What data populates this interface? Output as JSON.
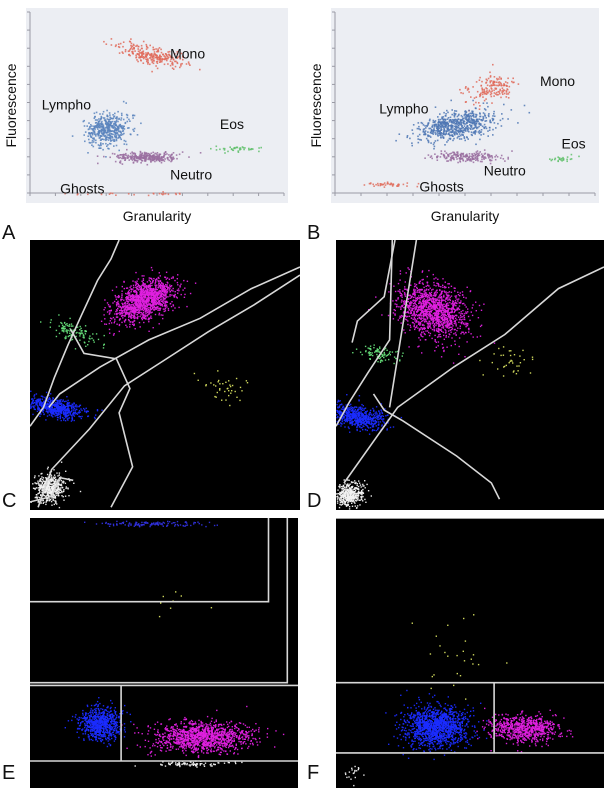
{
  "figure": {
    "panel_letters": [
      "A",
      "B",
      "C",
      "D",
      "E",
      "F"
    ]
  },
  "chart_data": [
    {
      "panel": "A",
      "type": "scatter",
      "title": "",
      "xlabel": "Granularity",
      "ylabel": "Fluorescence",
      "grid": false,
      "legend": "none",
      "background": "#eceef3",
      "populations": [
        {
          "name": "Mono",
          "color": "#e06a5a",
          "label": "Mono",
          "shape": "cloud",
          "center": [
            4.8,
            7.6
          ],
          "spread": [
            0.45,
            1.3
          ],
          "tilt": -72,
          "count": 260
        },
        {
          "name": "Lympho",
          "color": "#5b84bd",
          "label": "Lympho",
          "shape": "cloud",
          "center": [
            3.1,
            3.8
          ],
          "spread": [
            0.9,
            0.8
          ],
          "tilt": -35,
          "count": 450
        },
        {
          "name": "Neutro",
          "color": "#9a6fa0",
          "label": "Neutro",
          "shape": "cloud",
          "center": [
            4.6,
            2.4
          ],
          "spread": [
            1.2,
            0.25
          ],
          "tilt": 0,
          "count": 300
        },
        {
          "name": "Eos",
          "color": "#5fbf6a",
          "label": "Eos",
          "shape": "cloud",
          "center": [
            8.1,
            2.8
          ],
          "spread": [
            0.9,
            0.15
          ],
          "tilt": 0,
          "count": 40
        },
        {
          "name": "Ghosts",
          "color": "#e07060",
          "label": "Ghosts",
          "shape": "cloud",
          "center": [
            4.0,
            0.5
          ],
          "spread": [
            3.0,
            0.08
          ],
          "tilt": 0,
          "count": 25
        }
      ]
    },
    {
      "panel": "B",
      "type": "scatter",
      "title": "",
      "xlabel": "Granularity",
      "ylabel": "Fluorescence",
      "grid": false,
      "legend": "none",
      "background": "#eceef3",
      "populations": [
        {
          "name": "Mono",
          "color": "#e06a5a",
          "label": "Mono",
          "shape": "cloud",
          "center": [
            6.0,
            5.9
          ],
          "spread": [
            1.0,
            0.6
          ],
          "tilt": -30,
          "count": 160
        },
        {
          "name": "Lympho",
          "color": "#4f77b4",
          "label": "Lympho",
          "shape": "cloud",
          "center": [
            4.6,
            4.0
          ],
          "spread": [
            1.5,
            0.7
          ],
          "tilt": -18,
          "count": 650
        },
        {
          "name": "Neutro",
          "color": "#9a6fa0",
          "label": "Neutro",
          "shape": "cloud",
          "center": [
            5.1,
            2.4
          ],
          "spread": [
            1.3,
            0.25
          ],
          "tilt": 0,
          "count": 200
        },
        {
          "name": "Eos",
          "color": "#5fbf6a",
          "label": "Eos",
          "shape": "cloud",
          "center": [
            8.6,
            2.3
          ],
          "spread": [
            0.6,
            0.15
          ],
          "tilt": 0,
          "count": 25
        },
        {
          "name": "Ghosts",
          "color": "#e07060",
          "label": "Ghosts",
          "shape": "cloud",
          "center": [
            2.2,
            1.0
          ],
          "spread": [
            0.9,
            0.12
          ],
          "tilt": 0,
          "count": 45
        }
      ]
    },
    {
      "panel": "C",
      "type": "scatter",
      "title": "",
      "xlabel": "",
      "ylabel": "",
      "grid": false,
      "legend": "none",
      "background": "#000000",
      "populations": [
        {
          "name": "magenta",
          "color": "#e020e0",
          "center": [
            4.2,
            7.8
          ],
          "spread": [
            1.2,
            0.65
          ],
          "tilt": -25,
          "count": 1300
        },
        {
          "name": "green",
          "color": "#66e07a",
          "center": [
            1.6,
            6.6
          ],
          "spread": [
            0.35,
            1.0
          ],
          "tilt": -70,
          "count": 120
        },
        {
          "name": "blue",
          "color": "#1a2cff",
          "center": [
            0.9,
            3.8
          ],
          "spread": [
            0.35,
            1.1
          ],
          "tilt": -80,
          "count": 600
        },
        {
          "name": "white",
          "color": "#f2f2f2",
          "center": [
            0.7,
            0.8
          ],
          "spread": [
            0.6,
            0.5
          ],
          "tilt": -20,
          "count": 450
        },
        {
          "name": "yellow",
          "color": "#d8e060",
          "center": [
            7.2,
            4.5
          ],
          "spread": [
            0.9,
            0.6
          ],
          "tilt": 0,
          "count": 40
        }
      ],
      "gates": [
        [
          [
            0.0,
            3.1
          ],
          [
            0.5,
            3.8
          ],
          [
            0.9,
            4.9
          ],
          [
            1.4,
            6.1
          ],
          [
            1.9,
            7.2
          ],
          [
            2.5,
            8.5
          ],
          [
            3.0,
            9.3
          ],
          [
            3.3,
            10
          ]
        ],
        [
          [
            0.7,
            3.8
          ],
          [
            1.1,
            4.3
          ],
          [
            2.6,
            5.3
          ],
          [
            4.4,
            6.3
          ],
          [
            6.3,
            7.1
          ],
          [
            8.2,
            8.2
          ],
          [
            10,
            9.0
          ]
        ],
        [
          [
            0.3,
            0.1
          ],
          [
            0.8,
            1.5
          ],
          [
            2.2,
            3.0
          ],
          [
            3.5,
            4.6
          ],
          [
            4.9,
            5.5
          ],
          [
            6.6,
            6.6
          ],
          [
            8.3,
            7.6
          ],
          [
            10,
            8.7
          ]
        ],
        [
          [
            1.5,
            6.7
          ],
          [
            2.0,
            5.8
          ],
          [
            3.2,
            5.6
          ],
          [
            3.7,
            4.5
          ],
          [
            3.3,
            3.6
          ],
          [
            3.8,
            1.6
          ],
          [
            3.0,
            0.1
          ]
        ],
        [
          [
            0.0,
            0.3
          ],
          [
            0.8,
            0.5
          ],
          [
            1.1,
            1.2
          ],
          [
            1.6,
            1.1
          ]
        ]
      ]
    },
    {
      "panel": "D",
      "type": "scatter",
      "title": "",
      "xlabel": "",
      "ylabel": "",
      "grid": false,
      "legend": "none",
      "background": "#000000",
      "populations": [
        {
          "name": "magenta",
          "color": "#e020e0",
          "center": [
            3.6,
            7.4
          ],
          "spread": [
            1.0,
            1.4
          ],
          "tilt": -65,
          "count": 1300
        },
        {
          "name": "green",
          "color": "#66e07a",
          "center": [
            1.6,
            5.8
          ],
          "spread": [
            0.3,
            0.8
          ],
          "tilt": -80,
          "count": 90
        },
        {
          "name": "blue",
          "color": "#1a2cff",
          "center": [
            0.7,
            3.5
          ],
          "spread": [
            0.4,
            1.2
          ],
          "tilt": -80,
          "count": 650
        },
        {
          "name": "white",
          "color": "#f2f2f2",
          "center": [
            0.5,
            0.6
          ],
          "spread": [
            0.5,
            0.4
          ],
          "tilt": -20,
          "count": 420
        },
        {
          "name": "yellow",
          "color": "#d8e060",
          "center": [
            6.5,
            5.6
          ],
          "spread": [
            0.9,
            0.8
          ],
          "tilt": 0,
          "count": 35
        }
      ],
      "gates": [
        [
          [
            0.0,
            3.1
          ],
          [
            0.5,
            4.0
          ],
          [
            1.2,
            5.1
          ],
          [
            2.0,
            6.3
          ],
          [
            2.1,
            10
          ]
        ],
        [
          [
            0.6,
            6.2
          ],
          [
            0.8,
            7.0
          ],
          [
            1.8,
            7.9
          ],
          [
            2.2,
            10
          ]
        ],
        [
          [
            0.3,
            1.0
          ],
          [
            2.3,
            3.8
          ],
          [
            4.4,
            5.3
          ],
          [
            6.3,
            6.5
          ],
          [
            8.3,
            8.2
          ],
          [
            10,
            9.0
          ]
        ],
        [
          [
            1.4,
            4.3
          ],
          [
            1.8,
            3.7
          ],
          [
            2.5,
            3.3
          ],
          [
            4.5,
            2.0
          ],
          [
            5.8,
            1.0
          ],
          [
            6.1,
            0.4
          ]
        ],
        [
          [
            2.0,
            3.8
          ],
          [
            3.0,
            10
          ]
        ]
      ]
    },
    {
      "panel": "E",
      "type": "scatter",
      "title": "",
      "xlabel": "",
      "ylabel": "",
      "grid": false,
      "legend": "none",
      "background": "#000000",
      "populations": [
        {
          "name": "magenta",
          "color": "#e020e0",
          "center": [
            6.4,
            1.9
          ],
          "spread": [
            1.8,
            0.55
          ],
          "tilt": 0,
          "count": 1200
        },
        {
          "name": "blue",
          "color": "#1a2cff",
          "center": [
            2.6,
            2.4
          ],
          "spread": [
            0.8,
            0.6
          ],
          "tilt": 0,
          "count": 700
        },
        {
          "name": "white",
          "color": "#f2f2f2",
          "center": [
            6.0,
            0.9
          ],
          "spread": [
            1.6,
            0.1
          ],
          "tilt": 0,
          "count": 80
        },
        {
          "name": "top-blue",
          "color": "#3030dd",
          "center": [
            4.5,
            9.8
          ],
          "spread": [
            2.0,
            0.1
          ],
          "tilt": 0,
          "count": 120
        },
        {
          "name": "yellow",
          "color": "#d8e060",
          "center": [
            5.5,
            6.8
          ],
          "spread": [
            1.5,
            0.8
          ],
          "tilt": 0,
          "count": 8
        }
      ],
      "gates": [
        [
          [
            0,
            1.0
          ],
          [
            10,
            1.0
          ]
        ],
        [
          [
            0,
            3.8
          ],
          [
            10,
            3.8
          ]
        ],
        [
          [
            0,
            6.9
          ],
          [
            8.9,
            6.9
          ],
          [
            8.9,
            10
          ]
        ],
        [
          [
            0,
            3.9
          ],
          [
            9.6,
            3.9
          ],
          [
            9.6,
            10
          ]
        ],
        [
          [
            3.4,
            1.0
          ],
          [
            3.4,
            3.8
          ]
        ]
      ]
    },
    {
      "panel": "F",
      "type": "scatter",
      "title": "",
      "xlabel": "",
      "ylabel": "",
      "grid": false,
      "legend": "none",
      "background": "#000000",
      "populations": [
        {
          "name": "blue",
          "color": "#1a2cff",
          "center": [
            3.7,
            2.3
          ],
          "spread": [
            1.2,
            0.75
          ],
          "tilt": 0,
          "count": 1300
        },
        {
          "name": "magenta",
          "color": "#e020e0",
          "center": [
            7.0,
            2.2
          ],
          "spread": [
            1.3,
            0.5
          ],
          "tilt": 0,
          "count": 700
        },
        {
          "name": "yellow",
          "color": "#d8e060",
          "center": [
            4.5,
            5.0
          ],
          "spread": [
            1.4,
            1.5
          ],
          "tilt": 0,
          "count": 25
        },
        {
          "name": "white",
          "color": "#f2f2f2",
          "center": [
            0.6,
            0.6
          ],
          "spread": [
            0.4,
            0.3
          ],
          "tilt": 0,
          "count": 20
        }
      ],
      "gates": [
        [
          [
            0,
            1.3
          ],
          [
            10,
            1.3
          ]
        ],
        [
          [
            0,
            3.9
          ],
          [
            10,
            3.9
          ]
        ],
        [
          [
            5.9,
            1.3
          ],
          [
            5.9,
            3.9
          ]
        ],
        [
          [
            0,
            10
          ],
          [
            10,
            10
          ]
        ]
      ]
    }
  ]
}
